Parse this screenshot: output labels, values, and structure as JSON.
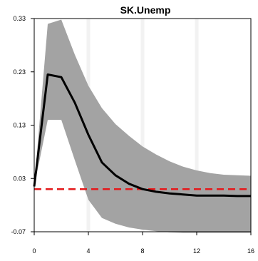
{
  "chart_data": {
    "type": "line",
    "title": "SK.Unemp",
    "xlabel": "",
    "ylabel": "",
    "xlim": [
      0,
      16
    ],
    "ylim": [
      -0.07,
      0.33
    ],
    "xticks": [
      0,
      4,
      8,
      12,
      16
    ],
    "xtick_labels": [
      "0",
      "4",
      "8",
      "12",
      "16"
    ],
    "yticks": [
      0.33,
      0.23,
      0.13,
      0.03,
      -0.07
    ],
    "ytick_labels": [
      "0.33",
      "0.23",
      "0.13",
      "0.03",
      "-0.07"
    ],
    "grid": "vertical",
    "x": [
      0,
      1,
      2,
      3,
      4,
      5,
      6,
      7,
      8,
      9,
      10,
      11,
      12,
      13,
      14,
      15,
      16
    ],
    "series": [
      {
        "role": "upper band",
        "values": [
          0.015,
          0.32,
          0.328,
          0.262,
          0.204,
          0.162,
          0.132,
          0.11,
          0.09,
          0.075,
          0.062,
          0.052,
          0.045,
          0.04,
          0.037,
          0.036,
          0.035
        ]
      },
      {
        "role": "lower band",
        "values": [
          0.015,
          0.14,
          0.14,
          0.064,
          -0.01,
          -0.044,
          -0.055,
          -0.062,
          -0.066,
          -0.069,
          -0.071,
          -0.072,
          -0.072,
          -0.072,
          -0.072,
          -0.072,
          -0.072
        ]
      },
      {
        "role": "estimate",
        "values": [
          0.015,
          0.225,
          0.22,
          0.172,
          0.112,
          0.06,
          0.036,
          0.02,
          0.01,
          0.005,
          0.002,
          0.0,
          -0.002,
          -0.002,
          -0.002,
          -0.003,
          -0.003
        ]
      },
      {
        "role": "zero reference",
        "values": [
          0.01,
          0.01,
          0.01,
          0.01,
          0.01,
          0.01,
          0.01,
          0.01,
          0.01,
          0.01,
          0.01,
          0.01,
          0.01,
          0.01,
          0.01,
          0.01,
          0.01
        ]
      }
    ],
    "colors": {
      "band": "#a3a3a3",
      "line": "#000000",
      "reference": "#e41a1c",
      "grid": "#f2f2f2",
      "frame": "#000000"
    }
  }
}
